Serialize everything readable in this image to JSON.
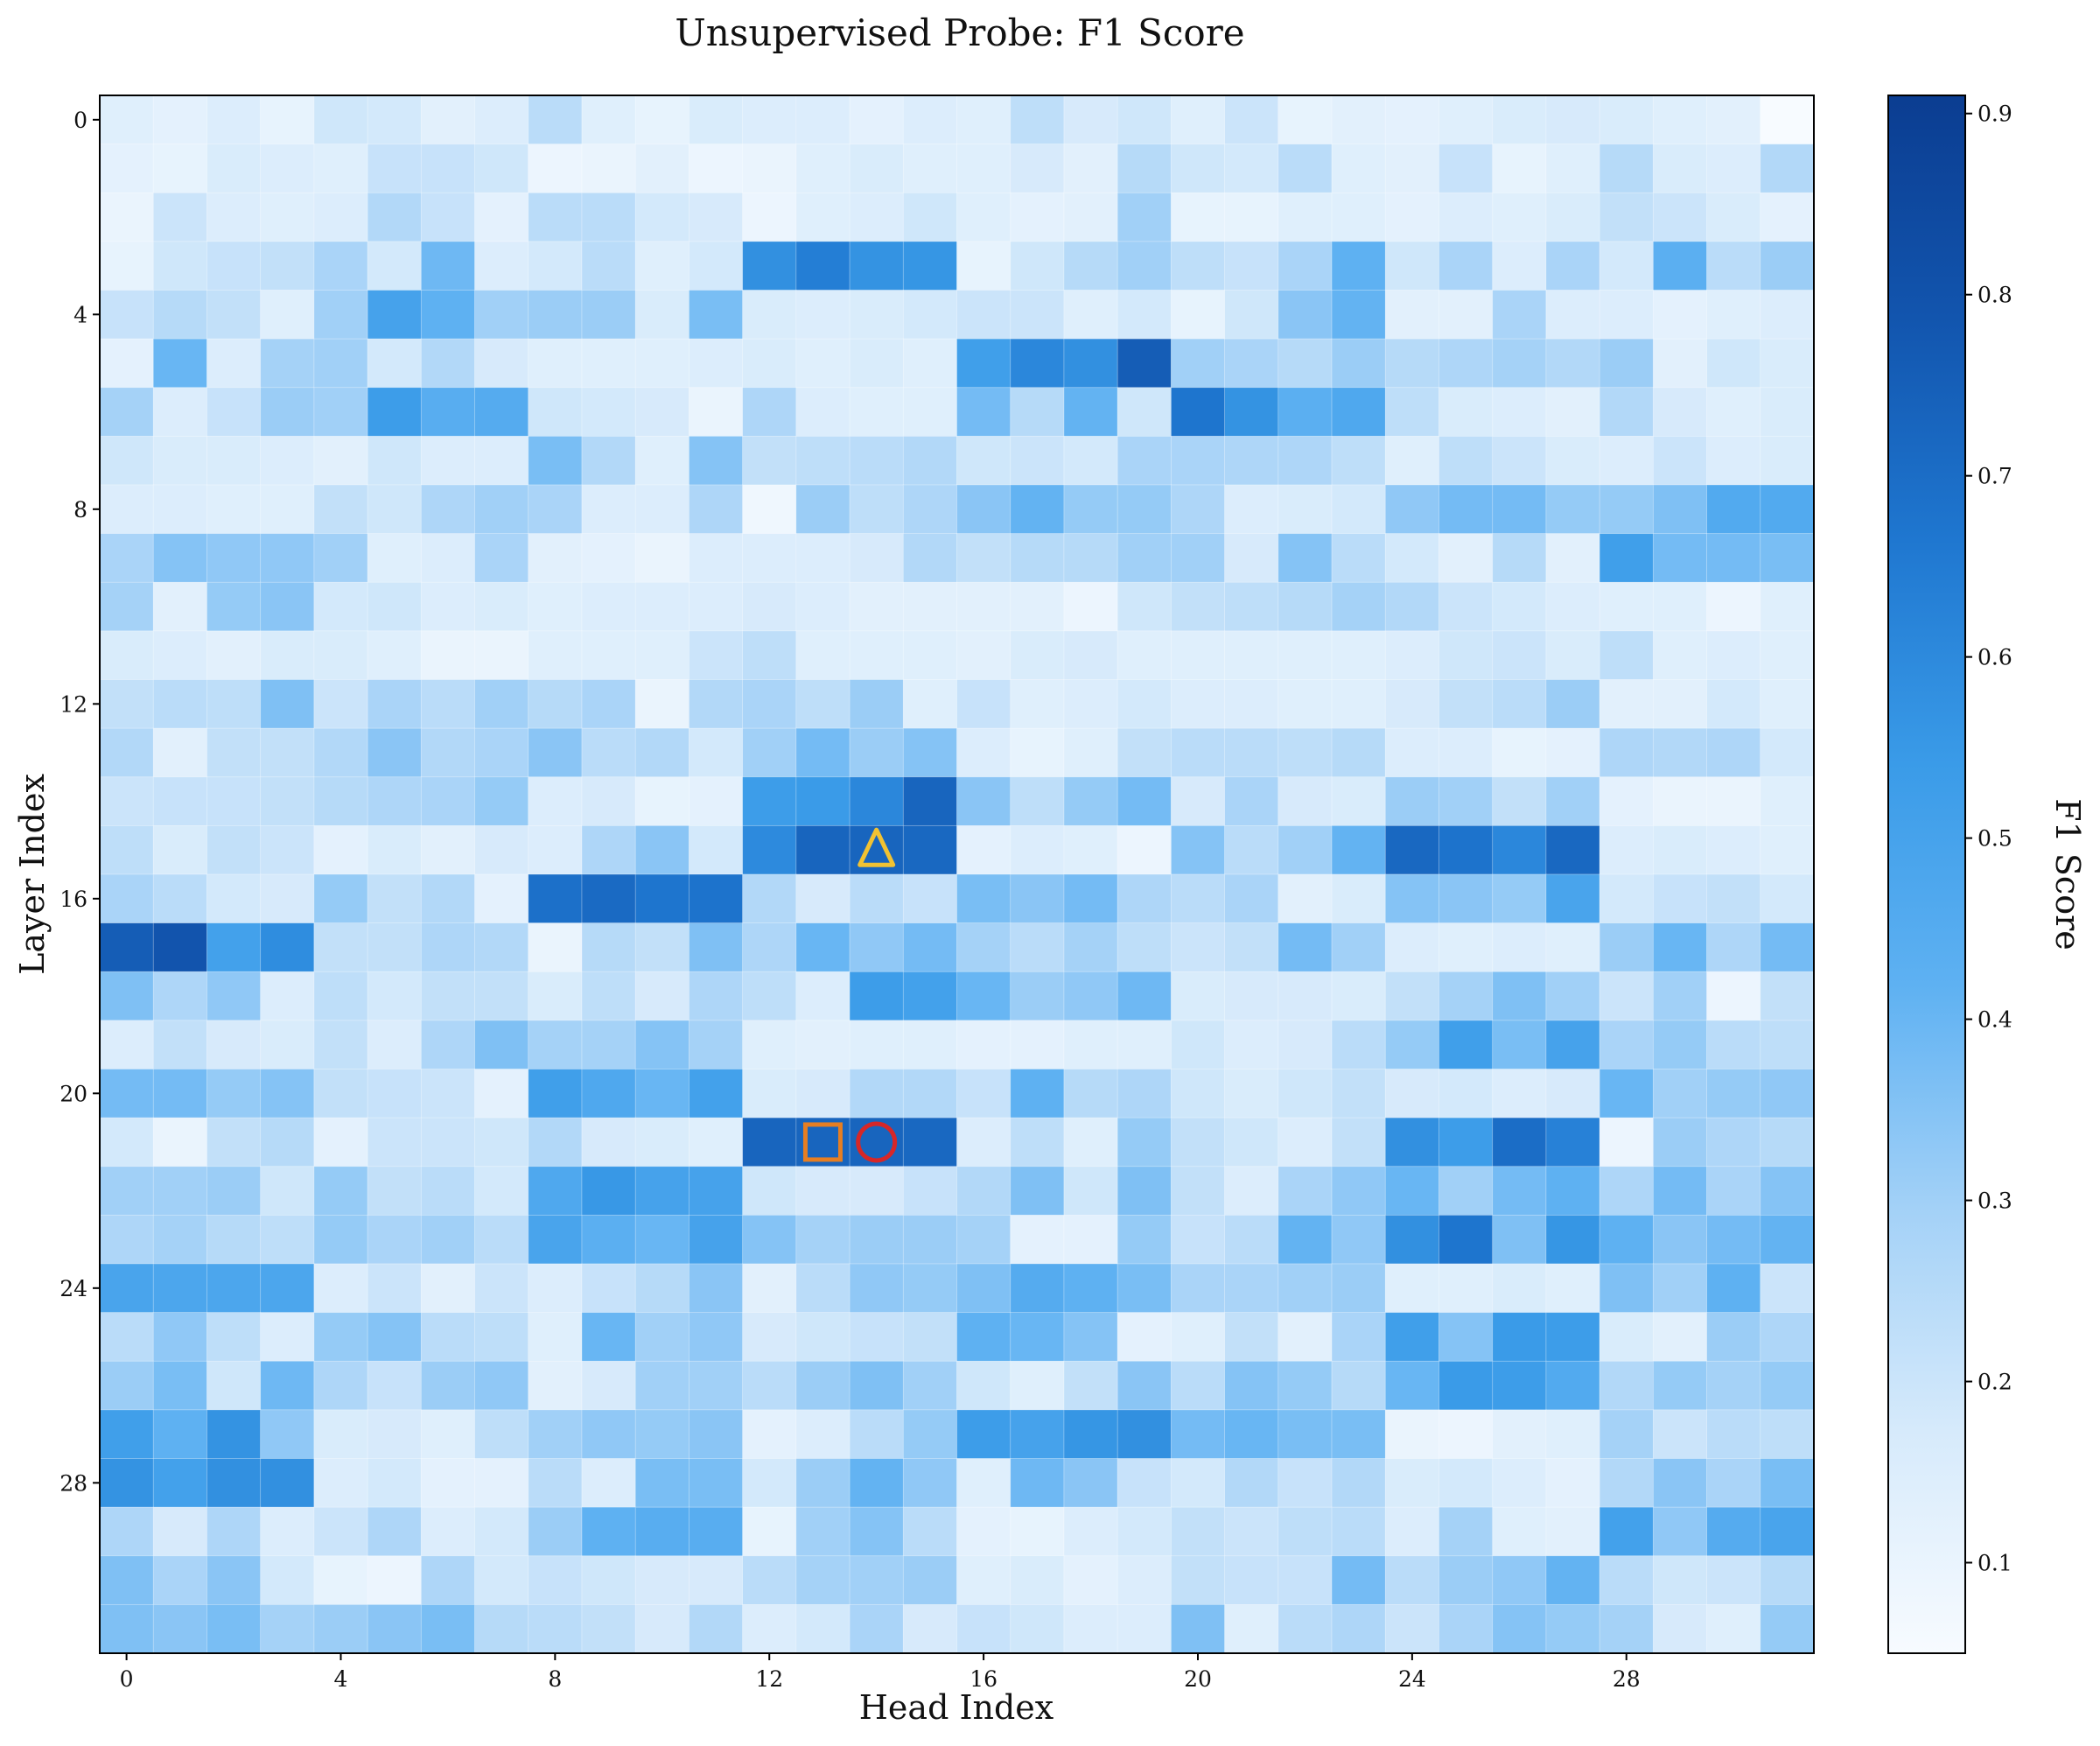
{
  "chart_data": {
    "type": "heatmap",
    "title": "Unsupervised Probe: F1 Score",
    "xlabel": "Head Index",
    "ylabel": "Layer Index",
    "colorbar_label": "F1 Score",
    "x_tick_labels": [
      "0",
      "4",
      "8",
      "12",
      "16",
      "20",
      "24",
      "28"
    ],
    "x_tick_values": [
      0,
      4,
      8,
      12,
      16,
      20,
      24,
      28
    ],
    "y_tick_labels": [
      "0",
      "4",
      "8",
      "12",
      "16",
      "20",
      "24",
      "28"
    ],
    "y_tick_values": [
      0,
      4,
      8,
      12,
      16,
      20,
      24,
      28
    ],
    "colorbar_ticks": [
      "0.1",
      "0.2",
      "0.3",
      "0.4",
      "0.5",
      "0.6",
      "0.7",
      "0.8",
      "0.9"
    ],
    "colorbar_tick_values": [
      0.1,
      0.2,
      0.3,
      0.4,
      0.5,
      0.6,
      0.7,
      0.8,
      0.9
    ],
    "vmin": 0.05,
    "vmax": 0.91,
    "colormap": [
      "#f7fbff",
      "#d6eafb",
      "#a3d1f7",
      "#5eb1f2",
      "#3a9be8",
      "#1f77d0",
      "#1255ae",
      "#0b3d91"
    ],
    "n_layers": 32,
    "n_heads": 32,
    "values": [
      [
        0.14,
        0.12,
        0.15,
        0.11,
        0.19,
        0.18,
        0.13,
        0.15,
        0.24,
        0.14,
        0.11,
        0.16,
        0.15,
        0.15,
        0.12,
        0.15,
        0.14,
        0.23,
        0.17,
        0.19,
        0.14,
        0.2,
        0.11,
        0.13,
        0.12,
        0.14,
        0.16,
        0.17,
        0.16,
        0.14,
        0.13,
        0.05
      ],
      [
        0.12,
        0.11,
        0.16,
        0.15,
        0.14,
        0.21,
        0.21,
        0.19,
        0.09,
        0.1,
        0.13,
        0.09,
        0.1,
        0.14,
        0.16,
        0.14,
        0.14,
        0.17,
        0.13,
        0.25,
        0.19,
        0.18,
        0.24,
        0.14,
        0.13,
        0.21,
        0.11,
        0.14,
        0.25,
        0.16,
        0.15,
        0.26
      ],
      [
        0.1,
        0.2,
        0.15,
        0.14,
        0.15,
        0.26,
        0.21,
        0.12,
        0.24,
        0.24,
        0.18,
        0.17,
        0.09,
        0.14,
        0.15,
        0.19,
        0.14,
        0.12,
        0.13,
        0.3,
        0.11,
        0.11,
        0.14,
        0.14,
        0.12,
        0.15,
        0.14,
        0.16,
        0.22,
        0.2,
        0.16,
        0.12
      ],
      [
        0.11,
        0.19,
        0.21,
        0.22,
        0.28,
        0.18,
        0.39,
        0.15,
        0.18,
        0.24,
        0.14,
        0.18,
        0.58,
        0.64,
        0.57,
        0.56,
        0.11,
        0.19,
        0.25,
        0.3,
        0.23,
        0.21,
        0.28,
        0.42,
        0.19,
        0.28,
        0.15,
        0.28,
        0.18,
        0.43,
        0.24,
        0.31
      ],
      [
        0.21,
        0.25,
        0.22,
        0.14,
        0.3,
        0.5,
        0.42,
        0.3,
        0.31,
        0.31,
        0.16,
        0.37,
        0.16,
        0.15,
        0.16,
        0.18,
        0.2,
        0.2,
        0.14,
        0.18,
        0.11,
        0.19,
        0.34,
        0.41,
        0.13,
        0.13,
        0.28,
        0.15,
        0.15,
        0.12,
        0.14,
        0.15
      ],
      [
        0.12,
        0.4,
        0.15,
        0.29,
        0.3,
        0.18,
        0.26,
        0.17,
        0.14,
        0.14,
        0.14,
        0.15,
        0.16,
        0.14,
        0.16,
        0.14,
        0.52,
        0.61,
        0.58,
        0.76,
        0.3,
        0.28,
        0.25,
        0.31,
        0.25,
        0.27,
        0.29,
        0.26,
        0.31,
        0.13,
        0.19,
        0.16
      ],
      [
        0.29,
        0.15,
        0.21,
        0.31,
        0.3,
        0.53,
        0.44,
        0.45,
        0.19,
        0.18,
        0.17,
        0.1,
        0.27,
        0.15,
        0.14,
        0.14,
        0.38,
        0.25,
        0.41,
        0.19,
        0.67,
        0.57,
        0.43,
        0.47,
        0.23,
        0.16,
        0.15,
        0.13,
        0.26,
        0.17,
        0.14,
        0.16
      ],
      [
        0.19,
        0.16,
        0.16,
        0.15,
        0.13,
        0.19,
        0.15,
        0.15,
        0.37,
        0.26,
        0.14,
        0.35,
        0.22,
        0.23,
        0.24,
        0.26,
        0.19,
        0.2,
        0.18,
        0.28,
        0.28,
        0.27,
        0.27,
        0.23,
        0.14,
        0.23,
        0.2,
        0.16,
        0.15,
        0.2,
        0.15,
        0.16
      ],
      [
        0.15,
        0.15,
        0.14,
        0.14,
        0.22,
        0.19,
        0.27,
        0.3,
        0.28,
        0.15,
        0.15,
        0.27,
        0.08,
        0.31,
        0.23,
        0.27,
        0.34,
        0.41,
        0.32,
        0.32,
        0.27,
        0.15,
        0.16,
        0.18,
        0.33,
        0.38,
        0.38,
        0.32,
        0.32,
        0.36,
        0.46,
        0.46
      ],
      [
        0.28,
        0.35,
        0.33,
        0.33,
        0.3,
        0.14,
        0.15,
        0.28,
        0.13,
        0.12,
        0.1,
        0.15,
        0.15,
        0.15,
        0.17,
        0.26,
        0.22,
        0.25,
        0.25,
        0.3,
        0.3,
        0.17,
        0.35,
        0.24,
        0.18,
        0.13,
        0.25,
        0.13,
        0.52,
        0.38,
        0.38,
        0.37
      ],
      [
        0.29,
        0.13,
        0.32,
        0.34,
        0.18,
        0.19,
        0.15,
        0.16,
        0.14,
        0.15,
        0.15,
        0.15,
        0.17,
        0.15,
        0.13,
        0.13,
        0.13,
        0.13,
        0.09,
        0.19,
        0.22,
        0.23,
        0.25,
        0.29,
        0.26,
        0.2,
        0.18,
        0.15,
        0.14,
        0.14,
        0.09,
        0.14
      ],
      [
        0.16,
        0.15,
        0.13,
        0.16,
        0.16,
        0.14,
        0.1,
        0.1,
        0.14,
        0.14,
        0.14,
        0.2,
        0.23,
        0.14,
        0.14,
        0.14,
        0.13,
        0.16,
        0.17,
        0.14,
        0.14,
        0.14,
        0.14,
        0.14,
        0.15,
        0.19,
        0.2,
        0.16,
        0.23,
        0.14,
        0.15,
        0.14
      ],
      [
        0.22,
        0.24,
        0.23,
        0.36,
        0.2,
        0.28,
        0.24,
        0.3,
        0.25,
        0.28,
        0.1,
        0.26,
        0.28,
        0.23,
        0.31,
        0.14,
        0.21,
        0.14,
        0.15,
        0.18,
        0.15,
        0.15,
        0.14,
        0.14,
        0.17,
        0.22,
        0.24,
        0.31,
        0.13,
        0.13,
        0.18,
        0.14
      ],
      [
        0.26,
        0.13,
        0.22,
        0.22,
        0.26,
        0.34,
        0.26,
        0.28,
        0.34,
        0.24,
        0.26,
        0.18,
        0.3,
        0.38,
        0.31,
        0.35,
        0.15,
        0.11,
        0.14,
        0.22,
        0.24,
        0.24,
        0.23,
        0.25,
        0.15,
        0.15,
        0.11,
        0.12,
        0.27,
        0.26,
        0.27,
        0.18
      ],
      [
        0.2,
        0.21,
        0.21,
        0.22,
        0.25,
        0.27,
        0.28,
        0.32,
        0.15,
        0.17,
        0.11,
        0.12,
        0.53,
        0.54,
        0.61,
        0.73,
        0.34,
        0.23,
        0.32,
        0.38,
        0.17,
        0.28,
        0.17,
        0.16,
        0.31,
        0.3,
        0.22,
        0.3,
        0.12,
        0.1,
        0.1,
        0.14
      ],
      [
        0.23,
        0.16,
        0.22,
        0.2,
        0.12,
        0.16,
        0.13,
        0.17,
        0.15,
        0.27,
        0.34,
        0.18,
        0.6,
        0.73,
        0.73,
        0.72,
        0.12,
        0.15,
        0.14,
        0.09,
        0.35,
        0.24,
        0.3,
        0.41,
        0.72,
        0.68,
        0.61,
        0.72,
        0.15,
        0.16,
        0.15,
        0.14
      ],
      [
        0.28,
        0.24,
        0.18,
        0.17,
        0.32,
        0.22,
        0.26,
        0.12,
        0.69,
        0.71,
        0.67,
        0.68,
        0.26,
        0.17,
        0.24,
        0.21,
        0.37,
        0.34,
        0.38,
        0.27,
        0.24,
        0.28,
        0.13,
        0.16,
        0.35,
        0.34,
        0.32,
        0.49,
        0.18,
        0.21,
        0.22,
        0.18
      ],
      [
        0.76,
        0.79,
        0.51,
        0.59,
        0.22,
        0.22,
        0.27,
        0.26,
        0.1,
        0.25,
        0.22,
        0.36,
        0.27,
        0.4,
        0.33,
        0.38,
        0.29,
        0.24,
        0.29,
        0.23,
        0.2,
        0.22,
        0.38,
        0.3,
        0.15,
        0.14,
        0.15,
        0.14,
        0.31,
        0.4,
        0.27,
        0.38
      ],
      [
        0.36,
        0.27,
        0.33,
        0.15,
        0.23,
        0.18,
        0.22,
        0.22,
        0.16,
        0.23,
        0.17,
        0.27,
        0.23,
        0.15,
        0.53,
        0.51,
        0.4,
        0.31,
        0.33,
        0.39,
        0.16,
        0.17,
        0.17,
        0.16,
        0.22,
        0.29,
        0.36,
        0.3,
        0.2,
        0.3,
        0.09,
        0.22
      ],
      [
        0.15,
        0.22,
        0.17,
        0.16,
        0.22,
        0.15,
        0.27,
        0.36,
        0.29,
        0.29,
        0.35,
        0.29,
        0.14,
        0.13,
        0.14,
        0.14,
        0.12,
        0.12,
        0.14,
        0.14,
        0.19,
        0.15,
        0.17,
        0.24,
        0.32,
        0.52,
        0.37,
        0.5,
        0.28,
        0.32,
        0.24,
        0.23
      ],
      [
        0.38,
        0.38,
        0.32,
        0.35,
        0.22,
        0.21,
        0.2,
        0.12,
        0.52,
        0.47,
        0.4,
        0.51,
        0.16,
        0.17,
        0.26,
        0.26,
        0.21,
        0.42,
        0.25,
        0.27,
        0.19,
        0.16,
        0.19,
        0.22,
        0.17,
        0.18,
        0.15,
        0.17,
        0.4,
        0.3,
        0.32,
        0.33
      ],
      [
        0.18,
        0.1,
        0.22,
        0.25,
        0.12,
        0.2,
        0.2,
        0.19,
        0.26,
        0.17,
        0.16,
        0.14,
        0.73,
        0.73,
        0.73,
        0.72,
        0.15,
        0.23,
        0.14,
        0.32,
        0.22,
        0.19,
        0.15,
        0.22,
        0.58,
        0.53,
        0.7,
        0.63,
        0.09,
        0.31,
        0.27,
        0.25
      ],
      [
        0.3,
        0.3,
        0.31,
        0.19,
        0.32,
        0.22,
        0.24,
        0.18,
        0.47,
        0.55,
        0.5,
        0.5,
        0.19,
        0.17,
        0.17,
        0.21,
        0.26,
        0.36,
        0.19,
        0.36,
        0.22,
        0.15,
        0.28,
        0.33,
        0.4,
        0.3,
        0.38,
        0.42,
        0.27,
        0.38,
        0.28,
        0.35
      ],
      [
        0.27,
        0.29,
        0.25,
        0.23,
        0.32,
        0.28,
        0.3,
        0.24,
        0.49,
        0.43,
        0.4,
        0.5,
        0.35,
        0.29,
        0.31,
        0.31,
        0.29,
        0.12,
        0.12,
        0.32,
        0.21,
        0.24,
        0.41,
        0.33,
        0.58,
        0.67,
        0.36,
        0.56,
        0.42,
        0.34,
        0.38,
        0.41
      ],
      [
        0.49,
        0.48,
        0.48,
        0.48,
        0.15,
        0.2,
        0.13,
        0.2,
        0.15,
        0.21,
        0.25,
        0.34,
        0.13,
        0.24,
        0.33,
        0.32,
        0.36,
        0.45,
        0.42,
        0.37,
        0.28,
        0.28,
        0.3,
        0.31,
        0.14,
        0.14,
        0.16,
        0.14,
        0.36,
        0.3,
        0.42,
        0.2
      ],
      [
        0.24,
        0.33,
        0.23,
        0.15,
        0.32,
        0.35,
        0.24,
        0.23,
        0.14,
        0.4,
        0.3,
        0.33,
        0.17,
        0.19,
        0.21,
        0.22,
        0.42,
        0.4,
        0.35,
        0.12,
        0.14,
        0.22,
        0.13,
        0.28,
        0.52,
        0.35,
        0.54,
        0.53,
        0.16,
        0.13,
        0.31,
        0.27
      ],
      [
        0.31,
        0.37,
        0.19,
        0.39,
        0.27,
        0.21,
        0.31,
        0.33,
        0.13,
        0.17,
        0.3,
        0.3,
        0.24,
        0.31,
        0.36,
        0.3,
        0.19,
        0.14,
        0.22,
        0.34,
        0.24,
        0.35,
        0.32,
        0.25,
        0.4,
        0.54,
        0.53,
        0.46,
        0.26,
        0.32,
        0.29,
        0.32
      ],
      [
        0.52,
        0.42,
        0.57,
        0.33,
        0.16,
        0.17,
        0.14,
        0.23,
        0.3,
        0.33,
        0.32,
        0.34,
        0.12,
        0.15,
        0.24,
        0.32,
        0.53,
        0.5,
        0.56,
        0.58,
        0.38,
        0.4,
        0.37,
        0.37,
        0.1,
        0.09,
        0.13,
        0.14,
        0.29,
        0.2,
        0.24,
        0.23
      ],
      [
        0.57,
        0.51,
        0.58,
        0.58,
        0.15,
        0.18,
        0.12,
        0.12,
        0.24,
        0.15,
        0.37,
        0.37,
        0.18,
        0.31,
        0.41,
        0.33,
        0.14,
        0.39,
        0.34,
        0.21,
        0.18,
        0.26,
        0.21,
        0.26,
        0.16,
        0.18,
        0.15,
        0.12,
        0.26,
        0.34,
        0.28,
        0.37
      ],
      [
        0.27,
        0.17,
        0.27,
        0.15,
        0.2,
        0.27,
        0.15,
        0.18,
        0.31,
        0.42,
        0.44,
        0.44,
        0.11,
        0.3,
        0.35,
        0.24,
        0.12,
        0.11,
        0.15,
        0.18,
        0.22,
        0.2,
        0.23,
        0.24,
        0.15,
        0.29,
        0.14,
        0.13,
        0.51,
        0.33,
        0.45,
        0.49
      ],
      [
        0.36,
        0.28,
        0.34,
        0.18,
        0.11,
        0.09,
        0.27,
        0.18,
        0.21,
        0.19,
        0.17,
        0.17,
        0.24,
        0.29,
        0.3,
        0.31,
        0.14,
        0.16,
        0.12,
        0.15,
        0.22,
        0.21,
        0.21,
        0.38,
        0.24,
        0.31,
        0.33,
        0.41,
        0.24,
        0.19,
        0.2,
        0.25
      ],
      [
        0.36,
        0.34,
        0.37,
        0.29,
        0.31,
        0.34,
        0.37,
        0.25,
        0.24,
        0.22,
        0.17,
        0.26,
        0.15,
        0.18,
        0.28,
        0.17,
        0.21,
        0.19,
        0.15,
        0.15,
        0.36,
        0.14,
        0.24,
        0.27,
        0.2,
        0.28,
        0.35,
        0.32,
        0.29,
        0.17,
        0.14,
        0.32
      ]
    ],
    "markers": [
      {
        "name": "square",
        "layer": 21,
        "head": 13,
        "color": "#e67e22"
      },
      {
        "name": "circle",
        "layer": 21,
        "head": 14,
        "color": "#d62728"
      },
      {
        "name": "triangle",
        "layer": 15,
        "head": 14,
        "color": "#f1c232"
      }
    ]
  }
}
